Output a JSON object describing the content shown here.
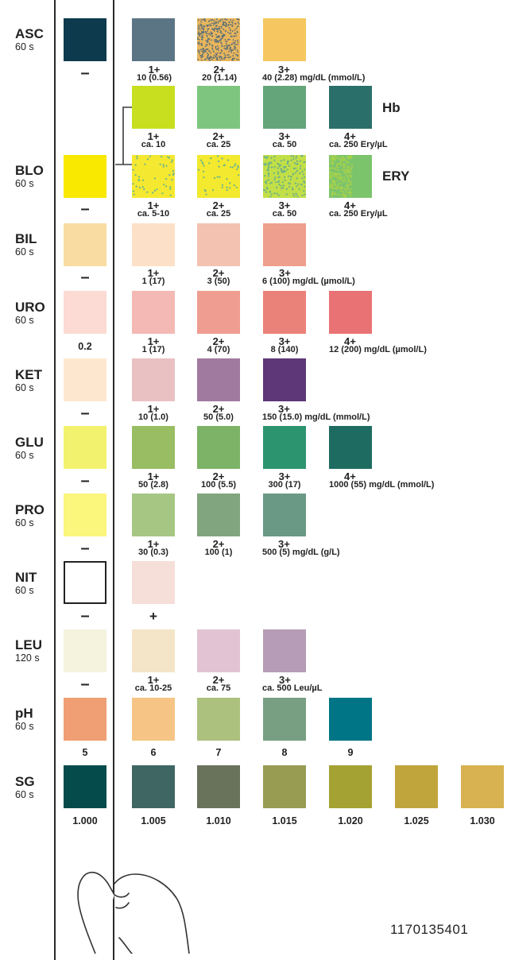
{
  "palette": {
    "asc": [
      "#0e3a4d",
      "#5b7584",
      "#e9b65c",
      "#f6c760"
    ],
    "hb": [
      "#c7df1f",
      "#7ec67f",
      "#64a67a",
      "#2b6f6a"
    ],
    "ery": [
      "#f9e800",
      "#f5e830",
      "#f3e92e",
      "#c3df47",
      "#7cc46c"
    ],
    "bil": [
      "#f9dca2",
      "#fce0c7",
      "#f4c2b1",
      "#ef9f8d"
    ],
    "uro": [
      "#fbdbd3",
      "#f4b9b4",
      "#ef9d91",
      "#eb8279",
      "#e97274"
    ],
    "ket": [
      "#fde8cf",
      "#eac1c3",
      "#a17a9f",
      "#5e3778"
    ],
    "glu": [
      "#f3f26e",
      "#99bd63",
      "#7cb366",
      "#2d9470",
      "#1e6c61"
    ],
    "pro": [
      "#fbf67c",
      "#a6c684",
      "#81a57e",
      "#6a9a85"
    ],
    "nit": [
      "#ffffff",
      "#f6dfd8"
    ],
    "leu": [
      "#f5f2de",
      "#f4e4c8",
      "#e2c3d3",
      "#b69cb6"
    ],
    "ph": [
      "#ef9f73",
      "#f6c585",
      "#adc17f",
      "#789f81",
      "#007585"
    ],
    "sg": [
      "#054b4b",
      "#3f6662",
      "#69735b",
      "#989c53",
      "#a4a232",
      "#c0a53d",
      "#d8b250"
    ],
    "bracket": "#3d3d3d"
  },
  "rows": {
    "asc": {
      "name": "ASC",
      "time": "60 s",
      "neg": "–",
      "labels": [
        {
          "grade": "1+",
          "text": "10 (0.56)"
        },
        {
          "grade": "2+",
          "text": "20 (1.14)"
        },
        {
          "grade": "3+",
          "text": "40 (2.28) mg/dL (mmol/L)"
        }
      ]
    },
    "hb": {
      "title": "Hb",
      "labels": [
        {
          "grade": "1+",
          "text": "ca. 10"
        },
        {
          "grade": "2+",
          "text": "ca. 25"
        },
        {
          "grade": "3+",
          "text": "ca. 50"
        },
        {
          "grade": "4+",
          "text": "ca. 250 Ery/µL"
        }
      ]
    },
    "blo": {
      "name": "BLO",
      "time": "60 s",
      "neg": "–",
      "ery_title": "ERY",
      "labels": [
        {
          "grade": "1+",
          "text": "ca. 5-10"
        },
        {
          "grade": "2+",
          "text": "ca. 25"
        },
        {
          "grade": "3+",
          "text": "ca. 50"
        },
        {
          "grade": "4+",
          "text": "ca. 250 Ery/µL"
        }
      ]
    },
    "bil": {
      "name": "BIL",
      "time": "60 s",
      "neg": "–",
      "labels": [
        {
          "grade": "1+",
          "text": "1 (17)"
        },
        {
          "grade": "2+",
          "text": "3 (50)"
        },
        {
          "grade": "3+",
          "text": "6 (100) mg/dL (µmol/L)"
        }
      ]
    },
    "uro": {
      "name": "URO",
      "time": "60 s",
      "neg": "0.2",
      "labels": [
        {
          "grade": "1+",
          "text": "1 (17)"
        },
        {
          "grade": "2+",
          "text": "4 (70)"
        },
        {
          "grade": "3+",
          "text": "8 (140)"
        },
        {
          "grade": "4+",
          "text": "12 (200) mg/dL (µmol/L)"
        }
      ]
    },
    "ket": {
      "name": "KET",
      "time": "60 s",
      "neg": "–",
      "labels": [
        {
          "grade": "1+",
          "text": "10 (1.0)"
        },
        {
          "grade": "2+",
          "text": "50 (5.0)"
        },
        {
          "grade": "3+",
          "text": "150 (15.0) mg/dL (mmol/L)"
        }
      ]
    },
    "glu": {
      "name": "GLU",
      "time": "60 s",
      "neg": "–",
      "labels": [
        {
          "grade": "1+",
          "text": "50 (2.8)"
        },
        {
          "grade": "2+",
          "text": "100 (5.5)"
        },
        {
          "grade": "3+",
          "text": "300 (17)"
        },
        {
          "grade": "4+",
          "text": "1000 (55) mg/dL (mmol/L)"
        }
      ]
    },
    "pro": {
      "name": "PRO",
      "time": "60 s",
      "neg": "–",
      "labels": [
        {
          "grade": "1+",
          "text": "30 (0.3)"
        },
        {
          "grade": "2+",
          "text": "100 (1)"
        },
        {
          "grade": "3+",
          "text": "500 (5) mg/dL (g/L)"
        }
      ]
    },
    "nit": {
      "name": "NIT",
      "time": "60 s",
      "neg": "–",
      "pos": "+"
    },
    "leu": {
      "name": "LEU",
      "time": "120 s",
      "neg": "–",
      "labels": [
        {
          "grade": "1+",
          "text": "ca. 10-25"
        },
        {
          "grade": "2+",
          "text": "ca. 75"
        },
        {
          "grade": "3+",
          "text": "ca. 500 Leu/µL"
        }
      ]
    },
    "ph": {
      "name": "pH",
      "time": "60 s",
      "values": [
        "5",
        "6",
        "7",
        "8",
        "9"
      ]
    },
    "sg": {
      "name": "SG",
      "time": "60 s",
      "values": [
        "1.000",
        "1.005",
        "1.010",
        "1.015",
        "1.020",
        "1.025",
        "1.030"
      ]
    }
  },
  "article_number": "1170135401"
}
